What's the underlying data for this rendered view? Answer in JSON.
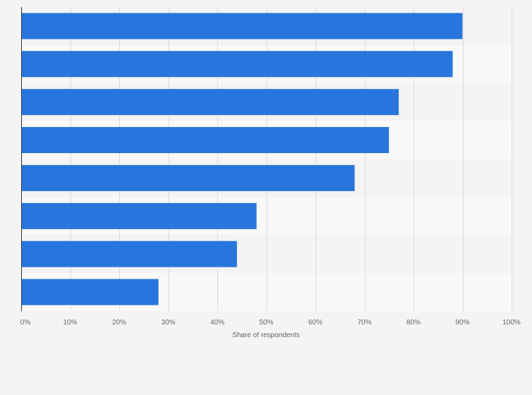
{
  "chart_data": {
    "type": "bar",
    "orientation": "horizontal",
    "categories": [
      "",
      "",
      "",
      "",
      "",
      "",
      "",
      ""
    ],
    "values": [
      90,
      88,
      77,
      75,
      68,
      48,
      44,
      28
    ],
    "xlabel": "Share of respondents",
    "ylabel": "",
    "xlim": [
      0,
      100
    ],
    "xticks": [
      0,
      10,
      20,
      30,
      40,
      50,
      60,
      70,
      80,
      90,
      100
    ],
    "tick_labels": [
      "0%",
      "10%",
      "20%",
      "30%",
      "40%",
      "50%",
      "60%",
      "70%",
      "80%",
      "90%",
      "100%"
    ],
    "grid": true,
    "legend": "none",
    "bar_color": "#2876dd",
    "background_color": "#f4f4f4",
    "band_colors": [
      "#f4f4f4",
      "#f9f9f9"
    ]
  }
}
